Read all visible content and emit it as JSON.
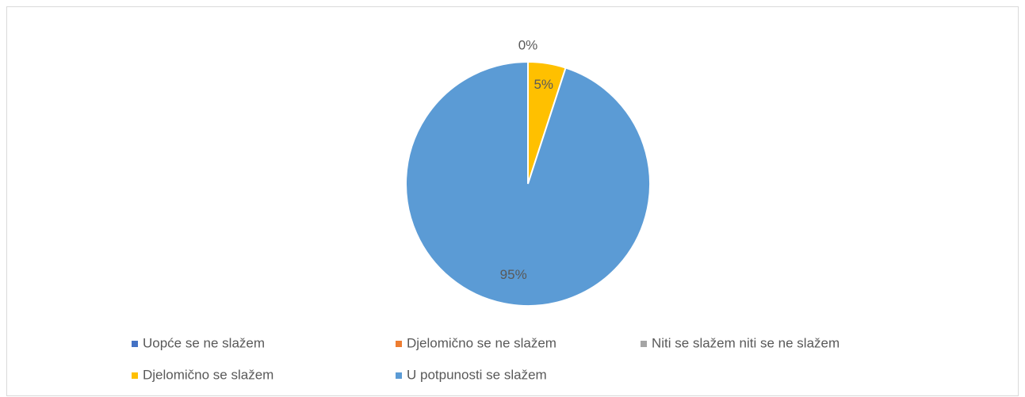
{
  "chart_data": {
    "type": "pie",
    "categories": [
      "Uopće se ne slažem",
      "Djelomično se ne slažem",
      "Niti se slažem niti se ne slažem",
      "Djelomično se slažem",
      "U potpunosti se slažem"
    ],
    "values": [
      0,
      0,
      0,
      5,
      95
    ],
    "value_labels": [
      "0%",
      null,
      null,
      "5%",
      "95%"
    ],
    "colors": [
      "#4472c4",
      "#ed7d31",
      "#a5a5a5",
      "#ffc000",
      "#5b9bd5"
    ],
    "legend": "bottom"
  }
}
